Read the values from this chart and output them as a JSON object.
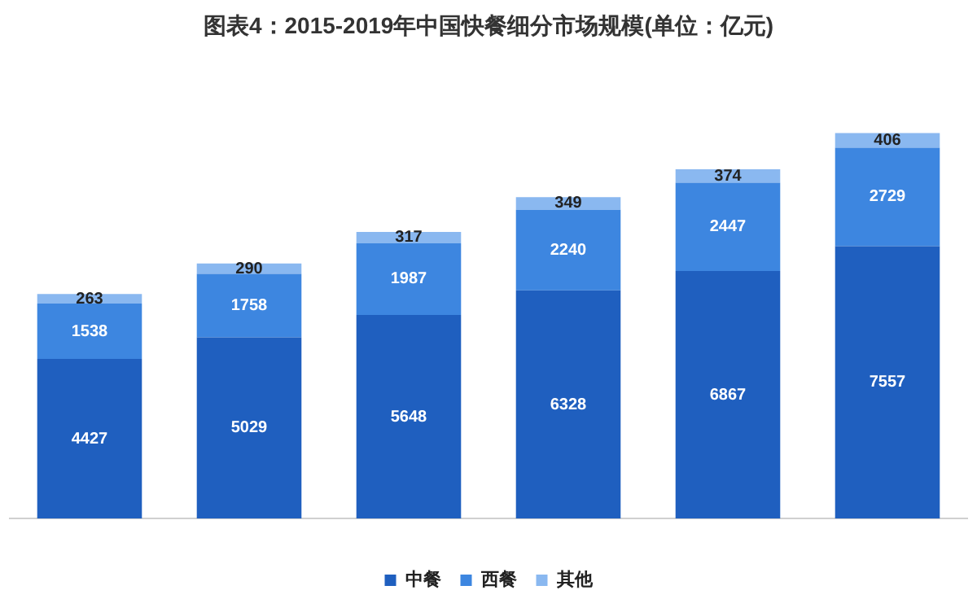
{
  "chart_data": {
    "type": "bar",
    "title": "图表4：2015-2019年中国快餐细分市场规模(单位：亿元)",
    "categories": [
      null,
      null,
      null,
      null,
      null,
      null
    ],
    "stacked": true,
    "data_labels": true,
    "legend": "bottom",
    "grid": false,
    "series": [
      {
        "name": "中餐",
        "color": "#1f5fbf",
        "values": [
          4427,
          5029,
          5648,
          6328,
          6867,
          7557
        ]
      },
      {
        "name": "西餐",
        "color": "#3d86e0",
        "values": [
          1538,
          1758,
          1987,
          2240,
          2447,
          2729
        ]
      },
      {
        "name": "其他",
        "color": "#8ab8f0",
        "values": [
          263,
          290,
          317,
          349,
          374,
          406
        ]
      }
    ]
  }
}
